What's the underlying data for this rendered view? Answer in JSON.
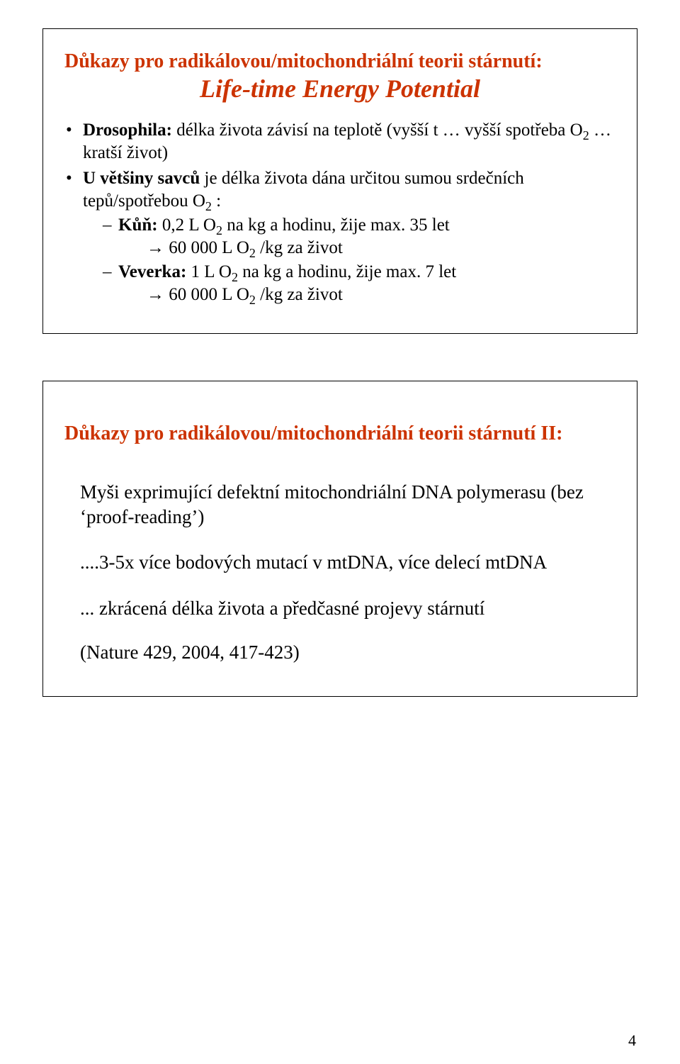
{
  "colors": {
    "accent": "#cc3300",
    "text": "#000000",
    "border": "#000000",
    "background": "#ffffff"
  },
  "slide1": {
    "title_line1": "Důkazy pro radikálovou/mitochondriální teorii stárnutí:",
    "title_line2": "Life-time Energy Potential",
    "bullet1_lead": "Drosophila:",
    "bullet1_rest": " délka života závisí na teplotě (vyšší t … vyšší spotřeba O",
    "bullet1_tail": " … kratší život)",
    "bullet2_lead": "U většiny savců",
    "bullet2_rest": " je délka života dána určitou sumou srdečních tepů/spotřebou O",
    "bullet2_tail": " :",
    "sub1_lead": "Kůň:",
    "sub1_rest": " 0,2 L O",
    "sub1_rest2": " na kg a hodinu, žije max. 35 let",
    "sub1_arrow_a": "→ 60 000 L O",
    "sub1_arrow_b": " /kg za život",
    "sub2_lead": "Veverka:",
    "sub2_rest": " 1 L O",
    "sub2_rest2": " na kg a hodinu, žije max. 7 let",
    "sub2_arrow_a": "→ 60 000 L O",
    "sub2_arrow_b": " /kg za život",
    "o2_sub": "2"
  },
  "slide2": {
    "title": "Důkazy pro radikálovou/mitochondriální teorii stárnutí II:",
    "p1_a": "Myši exprimující defektní mitochondriální DNA polymerasu (bez ",
    "p1_quote": "‘proof-reading’",
    "p1_b": ")",
    "p2": "....3-5x více bodových mutací v mtDNA, více delecí mtDNA",
    "p3": "... zkrácená délka života a předčasné projevy stárnutí",
    "citation": "(Nature 429, 2004, 417-423)"
  },
  "page_number": "4"
}
